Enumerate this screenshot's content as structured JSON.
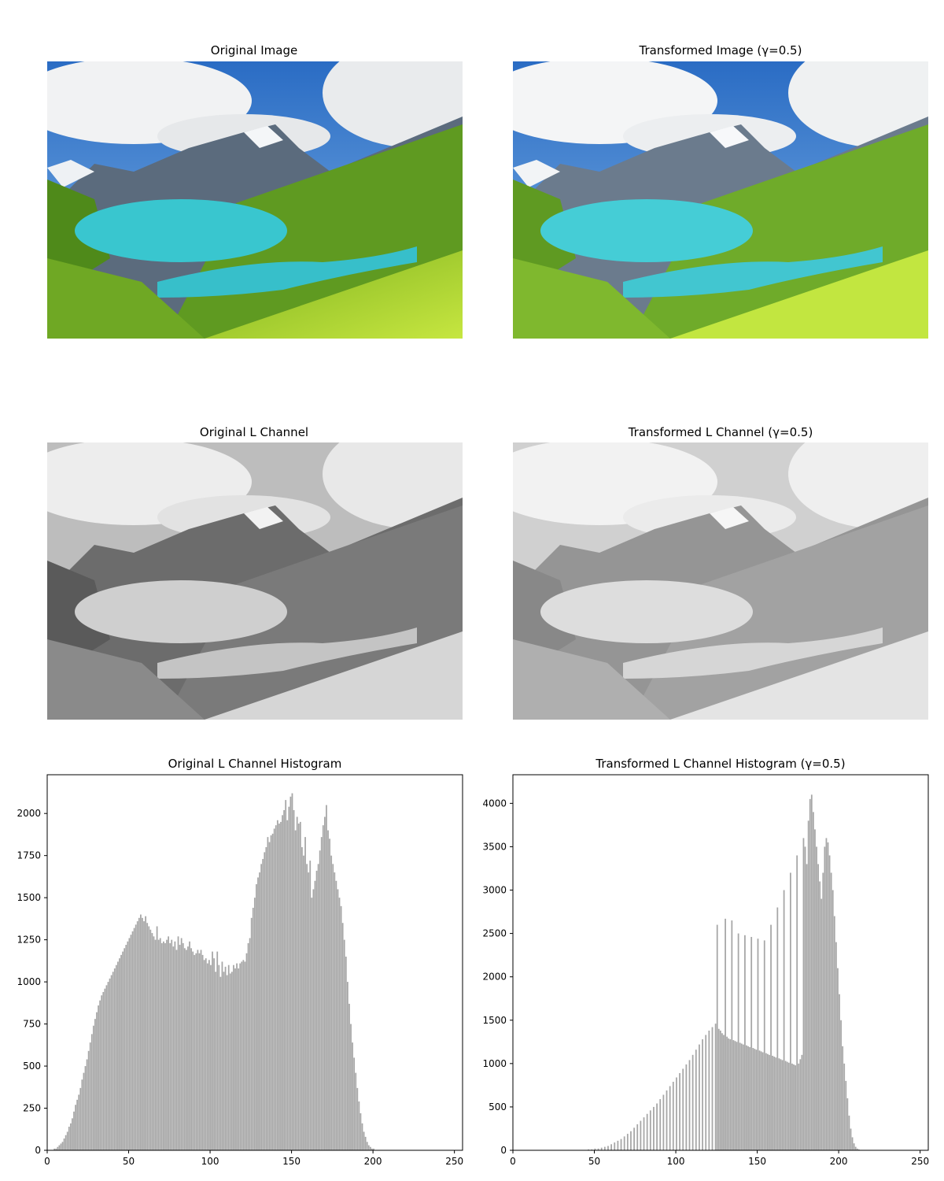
{
  "panels": {
    "original_image": {
      "title": "Original Image"
    },
    "transformed_image": {
      "title": "Transformed Image (γ=0.5)"
    },
    "original_l": {
      "title": "Original L Channel"
    },
    "transformed_l": {
      "title": "Transformed L Channel (γ=0.5)"
    }
  },
  "colors": {
    "bar": "#a6a6a6",
    "sky": "#2f76c7",
    "cloud": "#eef0f2",
    "mountain": "#5b6b7d",
    "forest": "#5f9a21",
    "meadow": "#a7d62a",
    "lake": "#39c6cf"
  },
  "chart_data": [
    {
      "type": "bar",
      "title": "Original L Channel Histogram",
      "xlabel": "",
      "ylabel": "",
      "xlim": [
        0,
        255
      ],
      "ylim": [
        0,
        2230
      ],
      "xticks": [
        0,
        50,
        100,
        150,
        200,
        250
      ],
      "yticks": [
        0,
        250,
        500,
        750,
        1000,
        1250,
        1500,
        1750,
        2000
      ],
      "grid": false,
      "bin_start": 0,
      "values": [
        0,
        0,
        0,
        0,
        10,
        10,
        20,
        30,
        40,
        50,
        70,
        90,
        110,
        140,
        160,
        190,
        230,
        270,
        300,
        330,
        370,
        420,
        460,
        500,
        540,
        590,
        640,
        690,
        740,
        780,
        820,
        860,
        890,
        920,
        940,
        960,
        980,
        1000,
        1020,
        1040,
        1060,
        1080,
        1100,
        1120,
        1140,
        1160,
        1180,
        1200,
        1220,
        1240,
        1260,
        1280,
        1300,
        1320,
        1340,
        1360,
        1380,
        1400,
        1380,
        1360,
        1390,
        1350,
        1330,
        1310,
        1290,
        1270,
        1250,
        1330,
        1250,
        1260,
        1230,
        1240,
        1230,
        1250,
        1270,
        1230,
        1250,
        1210,
        1240,
        1190,
        1270,
        1220,
        1260,
        1230,
        1200,
        1190,
        1210,
        1240,
        1200,
        1180,
        1160,
        1170,
        1190,
        1170,
        1190,
        1160,
        1130,
        1140,
        1110,
        1130,
        1100,
        1180,
        1140,
        1060,
        1180,
        1100,
        1030,
        1120,
        1060,
        1090,
        1040,
        1100,
        1050,
        1060,
        1100,
        1080,
        1110,
        1080,
        1110,
        1120,
        1130,
        1120,
        1170,
        1230,
        1260,
        1380,
        1440,
        1500,
        1580,
        1620,
        1650,
        1700,
        1730,
        1770,
        1800,
        1860,
        1830,
        1870,
        1880,
        1910,
        1930,
        1960,
        1940,
        1950,
        1990,
        2020,
        2080,
        1960,
        2040,
        2100,
        2120,
        2020,
        1900,
        1980,
        1940,
        1950,
        1800,
        1750,
        1860,
        1700,
        1650,
        1720,
        1500,
        1550,
        1600,
        1660,
        1700,
        1780,
        1860,
        1930,
        1980,
        2050,
        1900,
        1850,
        1750,
        1700,
        1650,
        1600,
        1550,
        1500,
        1450,
        1350,
        1250,
        1150,
        1000,
        870,
        750,
        640,
        550,
        460,
        370,
        290,
        220,
        160,
        110,
        80,
        50,
        30,
        20,
        10,
        10,
        0,
        0,
        0,
        0,
        0,
        0,
        0,
        0,
        0,
        0,
        0,
        0,
        0,
        0,
        0,
        0,
        0,
        0,
        0,
        0,
        0,
        0,
        0,
        0,
        0,
        0,
        0,
        0,
        0,
        0,
        0,
        0,
        0,
        0,
        0,
        0,
        0,
        0,
        0,
        0,
        0,
        0,
        0,
        0,
        0,
        0,
        0,
        0,
        0,
        0,
        0,
        0,
        0,
        0,
        0,
        0,
        0,
        0,
        0,
        0,
        0
      ]
    },
    {
      "type": "bar",
      "title": "Transformed L Channel Histogram (γ=0.5)",
      "xlabel": "",
      "ylabel": "",
      "xlim": [
        0,
        255
      ],
      "ylim": [
        0,
        4330
      ],
      "xticks": [
        0,
        50,
        100,
        150,
        200,
        250
      ],
      "yticks": [
        0,
        500,
        1000,
        1500,
        2000,
        2500,
        3000,
        3500,
        4000
      ],
      "grid": false,
      "bin_start": 0,
      "values": [
        0,
        0,
        0,
        0,
        0,
        0,
        0,
        0,
        0,
        0,
        0,
        0,
        0,
        0,
        0,
        0,
        0,
        0,
        0,
        0,
        0,
        0,
        0,
        0,
        0,
        0,
        0,
        0,
        0,
        0,
        0,
        0,
        0,
        0,
        0,
        0,
        0,
        0,
        0,
        0,
        0,
        0,
        0,
        0,
        0,
        0,
        10,
        0,
        10,
        0,
        20,
        0,
        20,
        0,
        30,
        0,
        40,
        0,
        50,
        0,
        70,
        0,
        90,
        0,
        110,
        0,
        130,
        0,
        160,
        0,
        190,
        0,
        220,
        0,
        260,
        0,
        300,
        0,
        340,
        0,
        380,
        0,
        420,
        0,
        460,
        0,
        500,
        0,
        540,
        0,
        590,
        0,
        640,
        0,
        690,
        0,
        740,
        0,
        790,
        0,
        840,
        0,
        890,
        0,
        940,
        0,
        990,
        0,
        1040,
        0,
        1100,
        0,
        1160,
        0,
        1220,
        0,
        1280,
        0,
        1330,
        0,
        1380,
        0,
        1420,
        0,
        1460,
        2600,
        1400,
        1380,
        1350,
        1330,
        2670,
        1310,
        1290,
        1280,
        2650,
        1270,
        1260,
        1250,
        2500,
        1240,
        1230,
        1220,
        2480,
        1210,
        1200,
        1190,
        2460,
        1180,
        1170,
        1160,
        2440,
        1150,
        1140,
        1130,
        2420,
        1120,
        1110,
        1100,
        2600,
        1090,
        1080,
        1070,
        2800,
        1060,
        1050,
        1040,
        3000,
        1030,
        1020,
        1010,
        3200,
        1000,
        990,
        980,
        3400,
        1000,
        1050,
        1100,
        3600,
        3500,
        3300,
        3800,
        4050,
        4100,
        3900,
        3700,
        3500,
        3300,
        3100,
        2900,
        3200,
        3500,
        3600,
        3550,
        3400,
        3200,
        3000,
        2700,
        2400,
        2100,
        1800,
        1500,
        1200,
        1000,
        800,
        600,
        400,
        250,
        150,
        80,
        40,
        20,
        10,
        0,
        0,
        0,
        0,
        0,
        0,
        0,
        0,
        0,
        0,
        0,
        0,
        0,
        0,
        0,
        0,
        0,
        0,
        0,
        0,
        0,
        0,
        0,
        0,
        0,
        0,
        0,
        0,
        0,
        0,
        0,
        0,
        0,
        0,
        0,
        0,
        0,
        0,
        0,
        0,
        0,
        0,
        0,
        0,
        0,
        0,
        0,
        0,
        0,
        0,
        0,
        0,
        0,
        0
      ]
    }
  ]
}
